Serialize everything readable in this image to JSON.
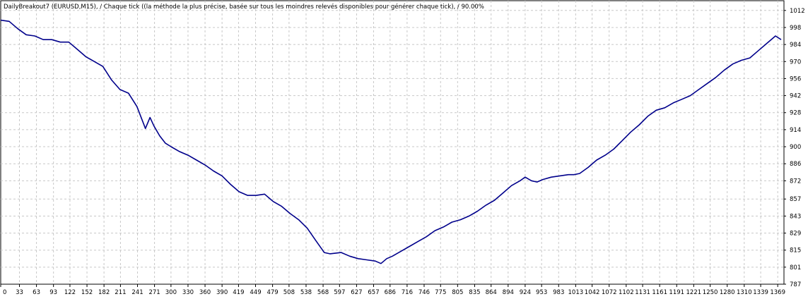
{
  "chart_data": {
    "type": "line",
    "title": "DailyBreakout7 (EURUSD,M15), / Chaque tick ((la méthode la plus précise, basée sur tous les moindres relevés disponibles pour générer chaque tick), / 90.00%",
    "xlabel": "",
    "ylabel": "",
    "xlim": [
      0,
      1380
    ],
    "ylim": [
      787,
      1020
    ],
    "grid": true,
    "line_color": "#00008b",
    "x_ticks": [
      0,
      33,
      63,
      93,
      122,
      152,
      182,
      211,
      241,
      271,
      300,
      330,
      360,
      390,
      419,
      449,
      479,
      508,
      538,
      568,
      597,
      627,
      657,
      686,
      716,
      746,
      775,
      805,
      835,
      864,
      894,
      924,
      953,
      983,
      1013,
      1042,
      1072,
      1102,
      1131,
      1161,
      1191,
      1221,
      1250,
      1280,
      1310,
      1339,
      1369
    ],
    "y_ticks": [
      1012,
      998,
      984,
      970,
      956,
      942,
      928,
      914,
      900,
      886,
      872,
      857,
      843,
      829,
      815,
      801,
      787
    ],
    "series": [
      {
        "x": [
          0,
          15,
          30,
          45,
          60,
          75,
          90,
          105,
          120,
          135,
          150,
          165,
          180,
          195,
          210,
          225,
          240,
          255,
          263,
          270,
          280,
          290,
          300,
          315,
          330,
          345,
          360,
          375,
          390,
          405,
          420,
          435,
          450,
          465,
          480,
          495,
          510,
          525,
          540,
          555,
          570,
          580,
          600,
          615,
          630,
          645,
          660,
          670,
          680,
          690,
          705,
          720,
          735,
          750,
          765,
          780,
          795,
          810,
          825,
          840,
          855,
          870,
          885,
          900,
          915,
          924,
          935,
          945,
          955,
          970,
          985,
          1000,
          1010,
          1020,
          1035,
          1050,
          1065,
          1080,
          1095,
          1110,
          1125,
          1140,
          1155,
          1170,
          1185,
          1200,
          1215,
          1230,
          1245,
          1260,
          1275,
          1290,
          1305,
          1320,
          1335,
          1350,
          1365,
          1375
        ],
        "y": [
          1004,
          1003,
          997,
          992,
          991,
          988,
          988,
          986,
          986,
          980,
          974,
          970,
          966,
          955,
          947,
          944,
          933,
          915,
          924,
          917,
          909,
          903,
          900,
          896,
          893,
          889,
          885,
          880,
          876,
          869,
          863,
          860,
          860,
          861,
          855,
          851,
          845,
          840,
          833,
          823,
          813,
          812,
          813,
          810,
          808,
          807,
          806,
          804,
          808,
          810,
          814,
          818,
          822,
          826,
          831,
          834,
          838,
          840,
          843,
          847,
          852,
          856,
          862,
          868,
          872,
          875,
          872,
          871,
          873,
          875,
          876,
          877,
          877,
          878,
          883,
          889,
          893,
          898,
          905,
          912,
          918,
          925,
          930,
          932,
          936,
          939,
          942,
          947,
          952,
          957,
          963,
          968,
          971,
          973,
          979,
          985,
          991,
          988
        ]
      }
    ]
  }
}
